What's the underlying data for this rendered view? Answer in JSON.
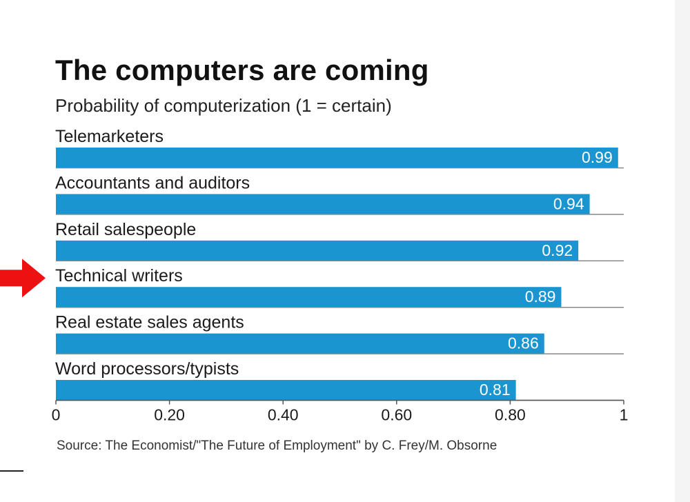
{
  "title": "The computers are coming",
  "subtitle": "Probability of computerization (1 = certain)",
  "source": "Source: The Economist/\"The Future of Employment\" by C. Frey/M. Obsorne",
  "colors": {
    "bar": "#1b95cf",
    "bar_label": "#ffffff",
    "text": "#222222",
    "rule": "#888888",
    "arrow": "#ee1111"
  },
  "chart_data": {
    "type": "bar",
    "orientation": "horizontal",
    "categories": [
      "Telemarketers",
      "Accountants and auditors",
      "Retail salespeople",
      "Technical writers",
      "Real estate sales agents",
      "Word processors/typists"
    ],
    "values": [
      0.99,
      0.94,
      0.92,
      0.89,
      0.86,
      0.81
    ],
    "value_labels": [
      "0.99",
      "0.94",
      "0.92",
      "0.89",
      "0.86",
      "0.81"
    ],
    "xlim": [
      0,
      1
    ],
    "xticks": [
      0,
      0.2,
      0.4,
      0.6,
      0.8,
      1
    ],
    "xtick_labels": [
      "0",
      "0.20",
      "0.40",
      "0.60",
      "0.80",
      "1"
    ],
    "highlighted_category": "Technical writers",
    "grid": false,
    "legend": "none"
  }
}
